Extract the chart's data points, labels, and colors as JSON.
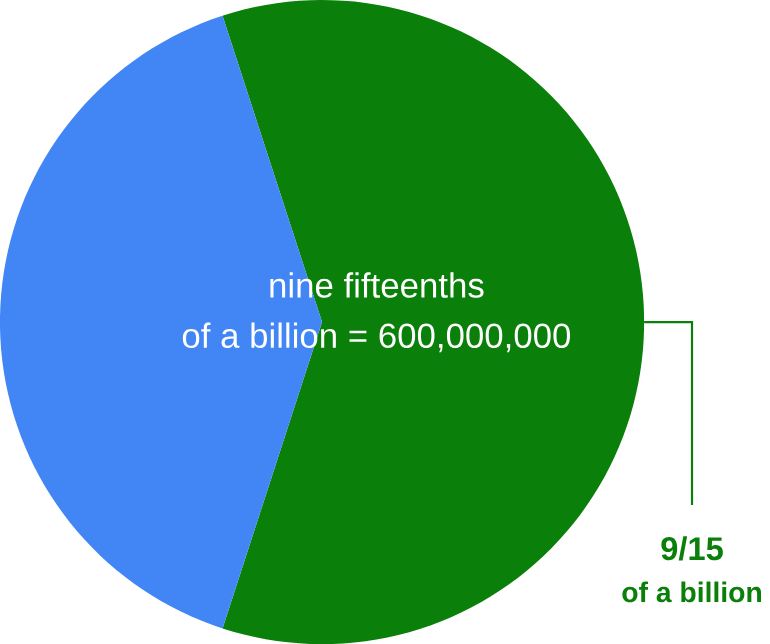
{
  "chart_data": {
    "type": "pie",
    "categories": [
      "9/15",
      null
    ],
    "values": [
      60,
      40
    ],
    "colors": [
      "#0a800a",
      "#4285f4"
    ],
    "annotations": [
      "nine fifteenths",
      "of a billion = 600,000,000",
      "of a billion"
    ]
  }
}
